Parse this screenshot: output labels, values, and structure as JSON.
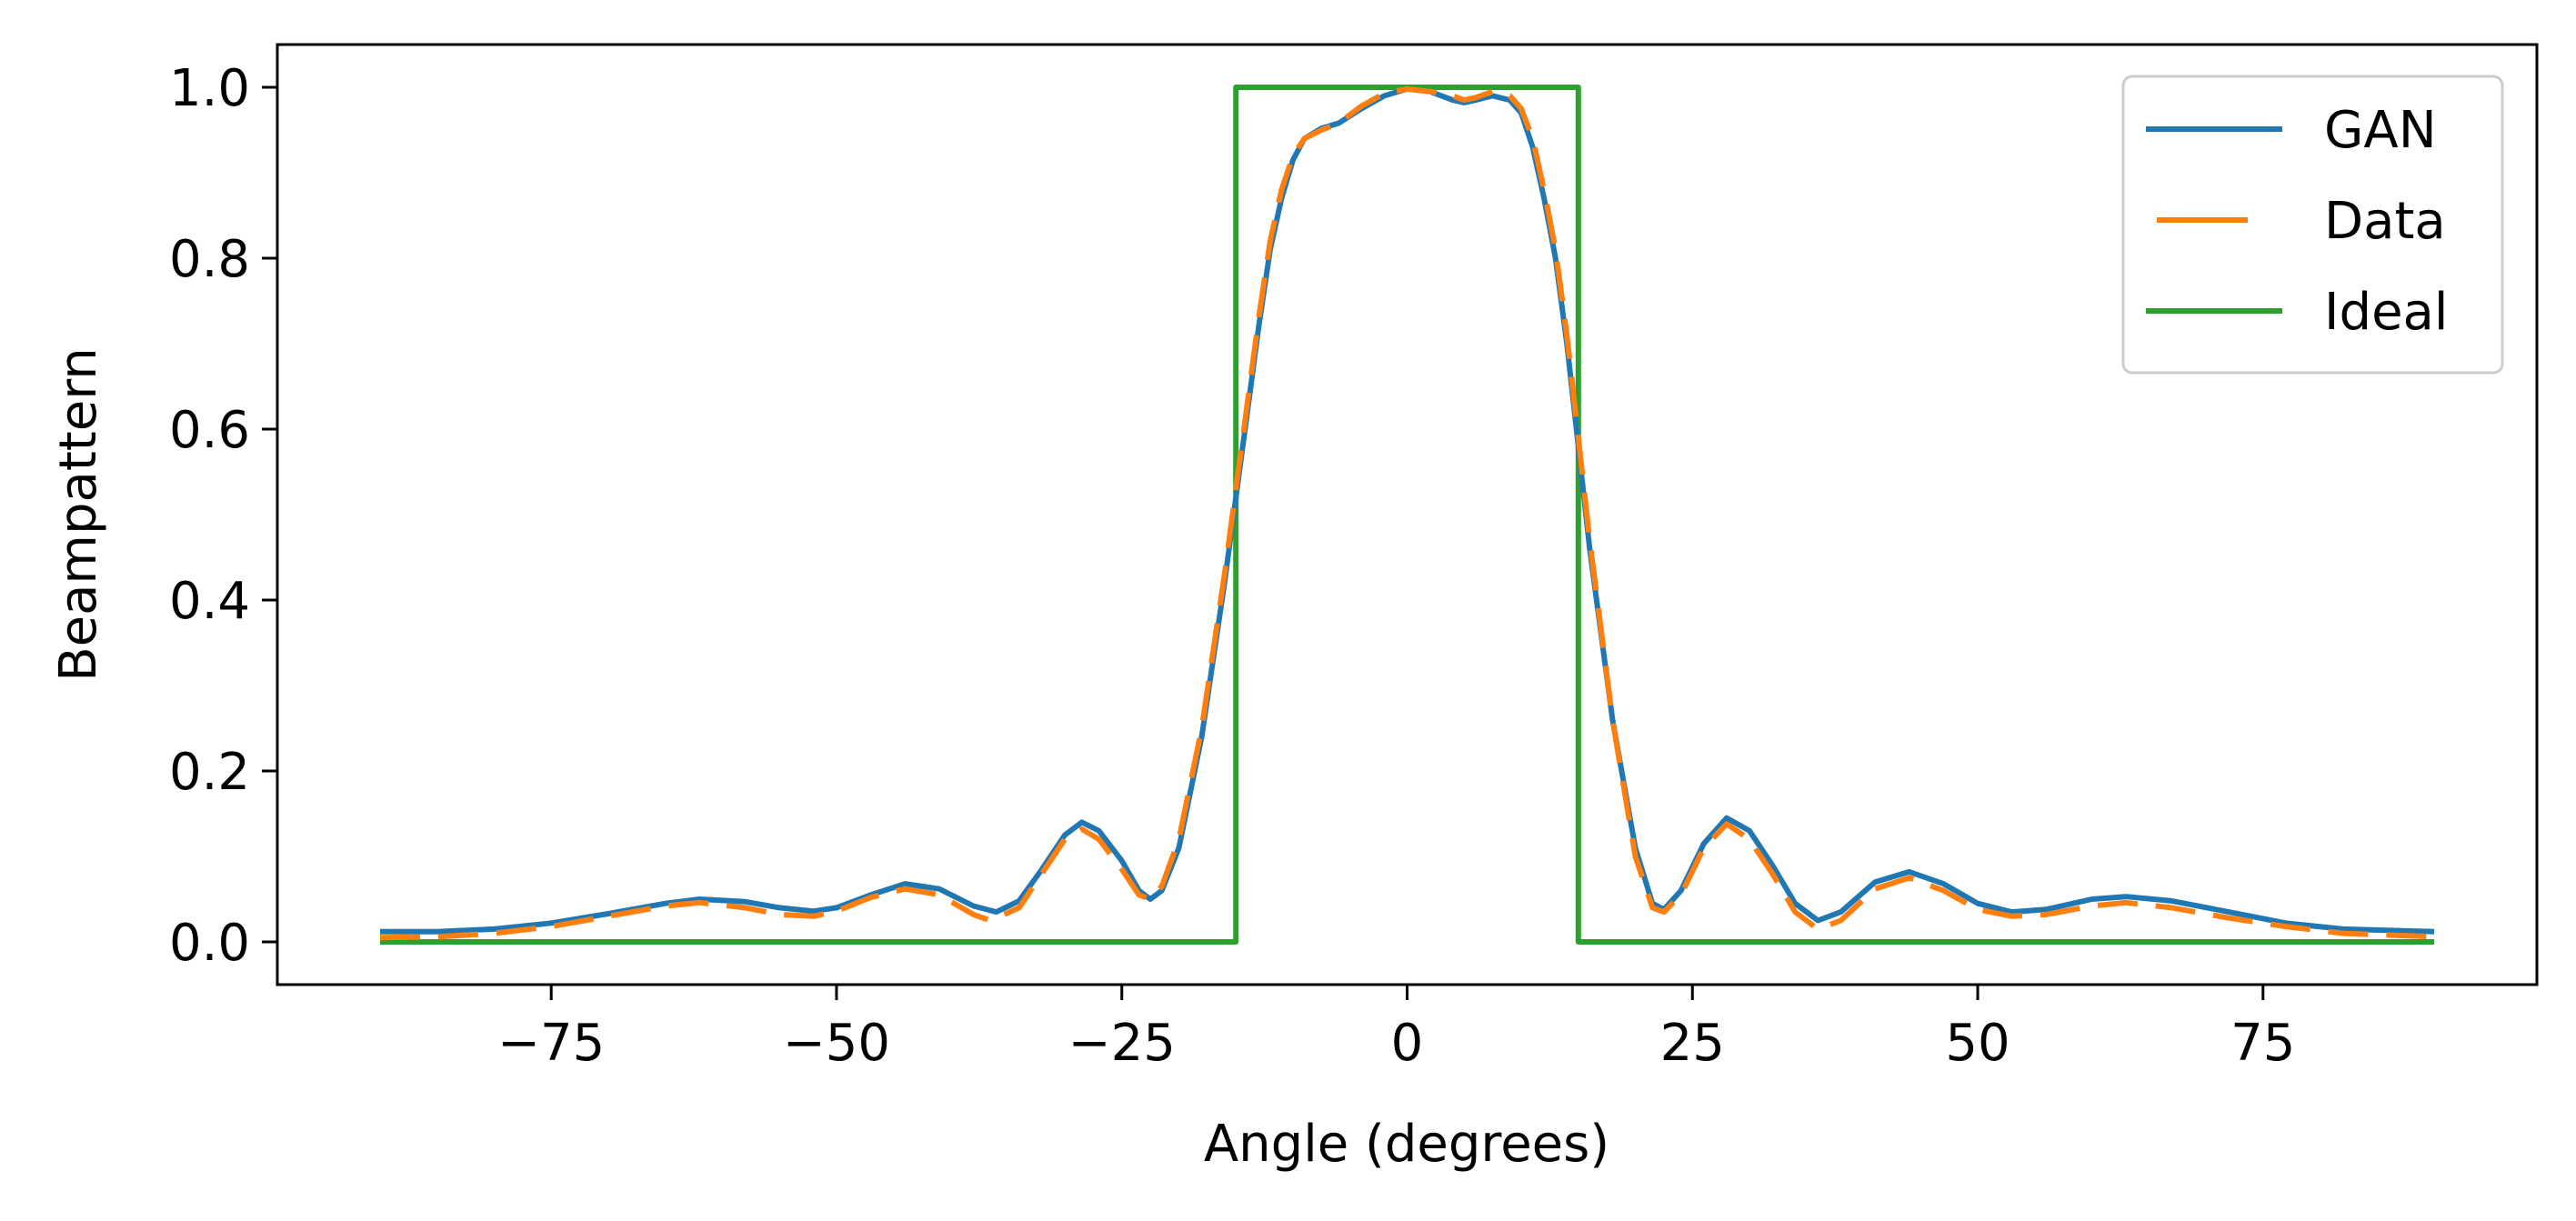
{
  "chart_data": {
    "type": "line",
    "xlabel": "Angle (degrees)",
    "ylabel": "Beampattern",
    "xlim": [
      -99,
      99
    ],
    "ylim": [
      -0.05,
      1.05
    ],
    "xticks": [
      -75,
      -50,
      -25,
      0,
      25,
      50,
      75
    ],
    "xtick_labels": [
      "−75",
      "−50",
      "−25",
      "0",
      "25",
      "50",
      "75"
    ],
    "yticks": [
      0.0,
      0.2,
      0.4,
      0.6,
      0.8,
      1.0
    ],
    "ytick_labels": [
      "0.0",
      "0.2",
      "0.4",
      "0.6",
      "0.8",
      "1.0"
    ],
    "grid": false,
    "legend_position": "top-right",
    "series": [
      {
        "name": "GAN",
        "color": "#1f77b4",
        "style": "solid",
        "points": [
          [
            -90,
            0.012
          ],
          [
            -85,
            0.012
          ],
          [
            -80,
            0.015
          ],
          [
            -75,
            0.022
          ],
          [
            -70,
            0.033
          ],
          [
            -65,
            0.045
          ],
          [
            -62,
            0.05
          ],
          [
            -58,
            0.047
          ],
          [
            -55,
            0.04
          ],
          [
            -52,
            0.036
          ],
          [
            -50,
            0.04
          ],
          [
            -47,
            0.055
          ],
          [
            -44,
            0.068
          ],
          [
            -41,
            0.062
          ],
          [
            -38,
            0.042
          ],
          [
            -36,
            0.035
          ],
          [
            -34,
            0.048
          ],
          [
            -32,
            0.085
          ],
          [
            -30,
            0.125
          ],
          [
            -28.5,
            0.14
          ],
          [
            -27,
            0.13
          ],
          [
            -25,
            0.095
          ],
          [
            -23.5,
            0.06
          ],
          [
            -22.5,
            0.05
          ],
          [
            -21.5,
            0.06
          ],
          [
            -20,
            0.11
          ],
          [
            -18,
            0.24
          ],
          [
            -16,
            0.42
          ],
          [
            -15,
            0.52
          ],
          [
            -14,
            0.62
          ],
          [
            -13,
            0.72
          ],
          [
            -12,
            0.81
          ],
          [
            -11,
            0.87
          ],
          [
            -10,
            0.915
          ],
          [
            -9,
            0.94
          ],
          [
            -7.5,
            0.952
          ],
          [
            -6,
            0.958
          ],
          [
            -4,
            0.975
          ],
          [
            -2,
            0.99
          ],
          [
            0,
            0.998
          ],
          [
            2,
            0.995
          ],
          [
            4,
            0.985
          ],
          [
            5,
            0.982
          ],
          [
            6,
            0.985
          ],
          [
            7.5,
            0.99
          ],
          [
            9,
            0.985
          ],
          [
            10,
            0.97
          ],
          [
            11,
            0.93
          ],
          [
            12,
            0.87
          ],
          [
            13,
            0.8
          ],
          [
            14,
            0.7
          ],
          [
            15,
            0.58
          ],
          [
            16,
            0.46
          ],
          [
            18,
            0.26
          ],
          [
            20,
            0.11
          ],
          [
            21.5,
            0.045
          ],
          [
            22.5,
            0.038
          ],
          [
            24,
            0.06
          ],
          [
            26,
            0.115
          ],
          [
            28,
            0.145
          ],
          [
            30,
            0.13
          ],
          [
            32,
            0.09
          ],
          [
            34,
            0.045
          ],
          [
            36,
            0.025
          ],
          [
            38,
            0.035
          ],
          [
            41,
            0.07
          ],
          [
            44,
            0.082
          ],
          [
            47,
            0.068
          ],
          [
            50,
            0.045
          ],
          [
            53,
            0.035
          ],
          [
            56,
            0.038
          ],
          [
            60,
            0.05
          ],
          [
            63,
            0.053
          ],
          [
            67,
            0.048
          ],
          [
            72,
            0.035
          ],
          [
            77,
            0.022
          ],
          [
            82,
            0.015
          ],
          [
            90,
            0.012
          ]
        ]
      },
      {
        "name": "Data",
        "color": "#ff7f0e",
        "style": "dashed",
        "points": [
          [
            -90,
            0.005
          ],
          [
            -85,
            0.006
          ],
          [
            -80,
            0.01
          ],
          [
            -75,
            0.018
          ],
          [
            -70,
            0.03
          ],
          [
            -65,
            0.042
          ],
          [
            -62,
            0.046
          ],
          [
            -58,
            0.04
          ],
          [
            -55,
            0.032
          ],
          [
            -52,
            0.03
          ],
          [
            -50,
            0.036
          ],
          [
            -47,
            0.052
          ],
          [
            -44,
            0.062
          ],
          [
            -41,
            0.055
          ],
          [
            -38,
            0.032
          ],
          [
            -36.5,
            0.025
          ],
          [
            -34,
            0.04
          ],
          [
            -32,
            0.08
          ],
          [
            -30,
            0.12
          ],
          [
            -28.5,
            0.132
          ],
          [
            -27,
            0.12
          ],
          [
            -25,
            0.085
          ],
          [
            -23.5,
            0.055
          ],
          [
            -22.5,
            0.05
          ],
          [
            -21.5,
            0.065
          ],
          [
            -20,
            0.12
          ],
          [
            -18,
            0.25
          ],
          [
            -16,
            0.43
          ],
          [
            -15,
            0.53
          ],
          [
            -14,
            0.63
          ],
          [
            -13,
            0.73
          ],
          [
            -12,
            0.82
          ],
          [
            -11,
            0.88
          ],
          [
            -10,
            0.92
          ],
          [
            -9,
            0.94
          ],
          [
            -7.5,
            0.95
          ],
          [
            -6,
            0.958
          ],
          [
            -4,
            0.978
          ],
          [
            -2,
            0.993
          ],
          [
            0,
            0.998
          ],
          [
            2,
            0.995
          ],
          [
            4,
            0.99
          ],
          [
            5,
            0.985
          ],
          [
            6,
            0.988
          ],
          [
            7.5,
            0.995
          ],
          [
            9,
            0.99
          ],
          [
            10,
            0.975
          ],
          [
            11,
            0.94
          ],
          [
            12,
            0.88
          ],
          [
            13,
            0.81
          ],
          [
            14,
            0.71
          ],
          [
            15,
            0.59
          ],
          [
            16,
            0.47
          ],
          [
            18,
            0.26
          ],
          [
            20,
            0.1
          ],
          [
            21.5,
            0.04
          ],
          [
            22.5,
            0.035
          ],
          [
            24,
            0.055
          ],
          [
            26,
            0.11
          ],
          [
            28,
            0.138
          ],
          [
            30,
            0.12
          ],
          [
            32,
            0.08
          ],
          [
            34,
            0.035
          ],
          [
            36,
            0.015
          ],
          [
            38,
            0.025
          ],
          [
            41,
            0.062
          ],
          [
            44,
            0.075
          ],
          [
            47,
            0.06
          ],
          [
            50,
            0.038
          ],
          [
            53,
            0.03
          ],
          [
            56,
            0.032
          ],
          [
            60,
            0.042
          ],
          [
            63,
            0.046
          ],
          [
            67,
            0.04
          ],
          [
            72,
            0.028
          ],
          [
            77,
            0.018
          ],
          [
            82,
            0.01
          ],
          [
            90,
            0.006
          ]
        ]
      },
      {
        "name": "Ideal",
        "color": "#2ca02c",
        "style": "solid",
        "points": [
          [
            -90,
            0
          ],
          [
            -15,
            0
          ],
          [
            -15,
            1
          ],
          [
            15,
            1
          ],
          [
            15,
            0
          ],
          [
            90,
            0
          ]
        ]
      }
    ]
  }
}
